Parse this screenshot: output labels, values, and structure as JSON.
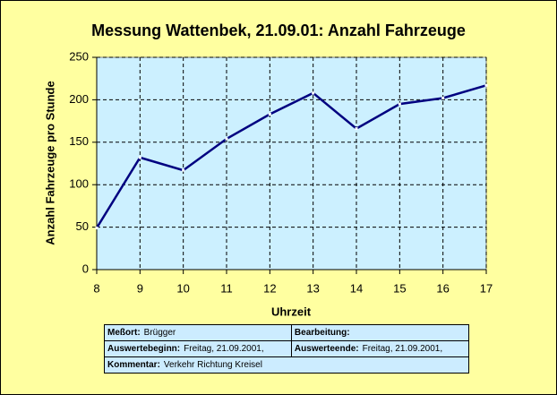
{
  "chart_data": {
    "type": "line",
    "title": "Messung Wattenbek, 21.09.01:  Anzahl Fahrzeuge",
    "x_label": "Uhrzeit",
    "y_label": "Anzahl Fahrzeuge pro Stunde",
    "x": [
      8,
      9,
      10,
      11,
      12,
      13,
      14,
      15,
      16,
      17
    ],
    "series": [
      {
        "name": "Anzahl Fahrzeuge",
        "color": "#000080",
        "values": [
          49,
          132,
          117,
          154,
          183,
          208,
          166,
          195,
          202,
          217
        ]
      }
    ],
    "xlim": [
      8,
      17
    ],
    "xticks": [
      8,
      9,
      10,
      11,
      12,
      13,
      14,
      15,
      16,
      17
    ],
    "ylim": [
      0,
      250
    ],
    "yticks": [
      0,
      50,
      100,
      150,
      200,
      250
    ],
    "grid": true
  },
  "info_table": {
    "rows": [
      [
        {
          "label": "Meßort:",
          "value": "Brügger"
        },
        {
          "label": "Bearbeitung:"
        }
      ],
      [
        {
          "label": "Auswertebeginn:",
          "value": "Freitag, 21.09.2001,"
        },
        {
          "label": "Auswerteende:",
          "value": "Freitag, 21.09.2001,"
        }
      ],
      [
        {
          "label": "Kommentar:",
          "value": "Verkehr Richtung Kreisel"
        }
      ]
    ]
  }
}
